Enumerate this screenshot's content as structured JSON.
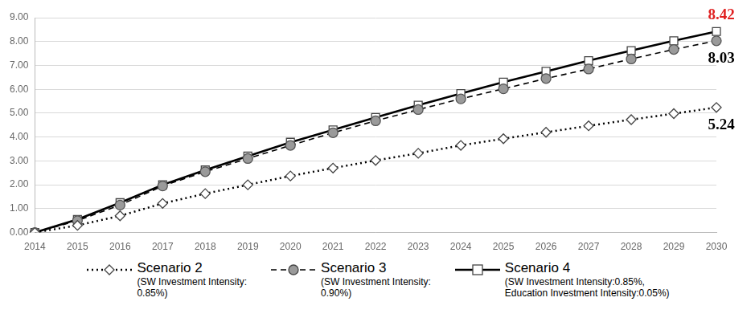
{
  "chart_data": {
    "type": "line",
    "categories": [
      "2014",
      "2015",
      "2016",
      "2017",
      "2018",
      "2019",
      "2020",
      "2021",
      "2022",
      "2023",
      "2024",
      "2025",
      "2026",
      "2027",
      "2028",
      "2029",
      "2030"
    ],
    "series": [
      {
        "name": "Scenario 2",
        "description": "(SW Investment Intensity:\n0.85%)",
        "color": "#000000",
        "marker": "diamond",
        "line_style": "dotted",
        "values": [
          0,
          0.3,
          0.7,
          1.22,
          1.63,
          2.0,
          2.37,
          2.7,
          3.02,
          3.32,
          3.65,
          3.93,
          4.2,
          4.47,
          4.73,
          4.98,
          5.24
        ]
      },
      {
        "name": "Scenario 3",
        "description": "(SW Investment Intensity:\n0.90%)",
        "color": "#000000",
        "marker": "circle",
        "line_style": "dashed",
        "values": [
          0,
          0.5,
          1.15,
          1.95,
          2.55,
          3.1,
          3.65,
          4.18,
          4.68,
          5.15,
          5.6,
          6.02,
          6.45,
          6.85,
          7.27,
          7.67,
          8.03
        ]
      },
      {
        "name": "Scenario 4",
        "description": "(SW Investment Intensity:0.85%,\nEducation Investment Intensity:0.05%)",
        "color": "#000000",
        "marker": "square",
        "line_style": "solid",
        "values": [
          0,
          0.55,
          1.25,
          2.0,
          2.62,
          3.2,
          3.78,
          4.3,
          4.82,
          5.33,
          5.82,
          6.3,
          6.75,
          7.2,
          7.62,
          8.03,
          8.42
        ]
      }
    ],
    "annotations": [
      {
        "text": "8.42",
        "x": "2030",
        "y": 8.42,
        "color": "#e02020"
      },
      {
        "text": "8.03",
        "x": "2030",
        "y": 8.03,
        "color": "#000000"
      },
      {
        "text": "5.24",
        "x": "2030",
        "y": 5.24,
        "color": "#000000"
      }
    ],
    "ylim": [
      0,
      9
    ],
    "yticks": [
      {
        "value": 0,
        "label": "0.00"
      },
      {
        "value": 1,
        "label": "1.00"
      },
      {
        "value": 2,
        "label": "2.00"
      },
      {
        "value": 3,
        "label": "3.00"
      },
      {
        "value": 4,
        "label": "4.00"
      },
      {
        "value": 5,
        "label": "5.00"
      },
      {
        "value": 6,
        "label": "6.00"
      },
      {
        "value": 7,
        "label": "7.00"
      },
      {
        "value": 8,
        "label": "8.00"
      },
      {
        "value": 9,
        "label": "9.00"
      }
    ],
    "grid": true,
    "legend": "bottom"
  }
}
